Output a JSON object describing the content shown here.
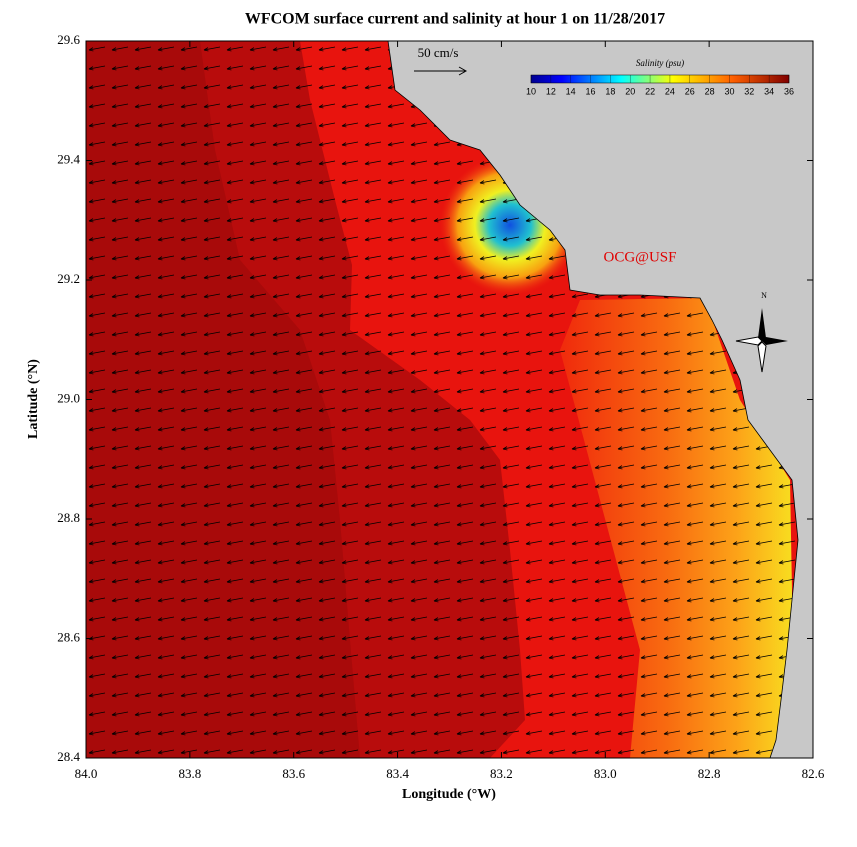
{
  "title": "WFCOM surface current and salinity at hour 1 on 11/28/2017",
  "x_axis": {
    "label": "Longitude (°W)",
    "lim": [
      84.0,
      82.6
    ],
    "ticks": [
      {
        "value": 84.0,
        "label": "84.0"
      },
      {
        "value": 83.8,
        "label": "83.8"
      },
      {
        "value": 83.6,
        "label": "83.6"
      },
      {
        "value": 83.4,
        "label": "83.4"
      },
      {
        "value": 83.2,
        "label": "83.2"
      },
      {
        "value": 83.0,
        "label": "83.0"
      },
      {
        "value": 82.8,
        "label": "82.8"
      },
      {
        "value": 82.6,
        "label": "82.6"
      }
    ]
  },
  "y_axis": {
    "label": "Latitude (°N)",
    "lim": [
      28.4,
      29.6
    ],
    "ticks": [
      {
        "value": 28.4,
        "label": "28.4"
      },
      {
        "value": 28.6,
        "label": "28.6"
      },
      {
        "value": 28.8,
        "label": "28.8"
      },
      {
        "value": 29.0,
        "label": "29.0"
      },
      {
        "value": 29.2,
        "label": "29.2"
      },
      {
        "value": 29.4,
        "label": "29.4"
      },
      {
        "value": 29.6,
        "label": "29.6"
      }
    ]
  },
  "scale_arrow": "50 cm/s",
  "colorbar": {
    "title": "Salinity (psu)",
    "lim": [
      10,
      36
    ],
    "ticks": [
      10,
      12,
      14,
      16,
      18,
      20,
      22,
      24,
      26,
      28,
      30,
      32,
      34,
      36
    ]
  },
  "credit": "OCG@USF",
  "compass": "N"
}
